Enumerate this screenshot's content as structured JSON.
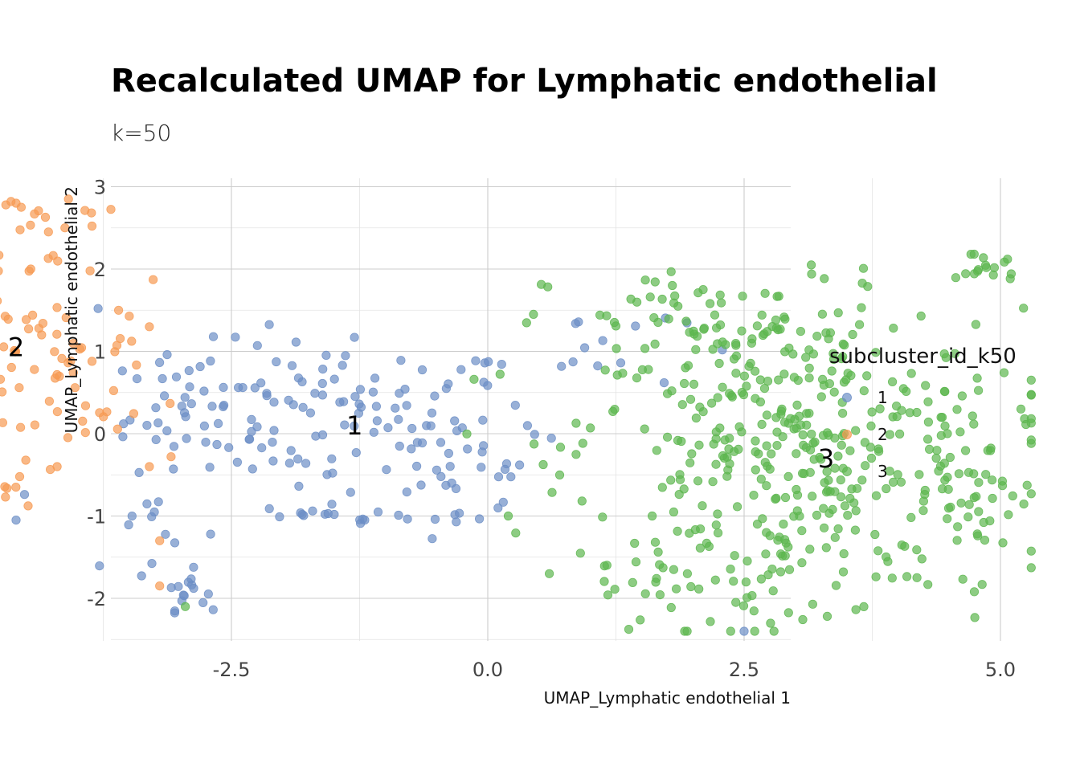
{
  "chart_data": {
    "type": "scatter",
    "title": "Recalculated UMAP for Lymphatic endothelial",
    "subtitle": "k=50",
    "xlabel": "UMAP_Lymphatic endothelial 1",
    "ylabel": "UMAP_Lymphatic endothelial 2",
    "xlim": [
      -7.0,
      6.0
    ],
    "ylim": [
      -2.5,
      3.1
    ],
    "x_ticks": [
      "-5.0",
      "-2.5",
      "0.0",
      "2.5",
      "5.0"
    ],
    "y_ticks": [
      "-2",
      "-1",
      "0",
      "1",
      "2",
      "3"
    ],
    "grid": true,
    "legend": {
      "title": "subcluster_id_k50",
      "position": "right",
      "entries": [
        "1",
        "2",
        "3"
      ]
    },
    "series": [
      {
        "name": "1",
        "color": "#6C8EC6",
        "centroid_label": {
          "text": "1",
          "x": -1.3,
          "y": 0.1
        },
        "clusters": [
          {
            "cx": -1.5,
            "cy": 0.2,
            "sx": 1.0,
            "sy": 0.45,
            "n": 120
          },
          {
            "cx": -0.6,
            "cy": -0.6,
            "sx": 0.7,
            "sy": 0.4,
            "n": 30
          },
          {
            "cx": -2.9,
            "cy": 0.5,
            "sx": 0.3,
            "sy": 0.45,
            "n": 20
          },
          {
            "cx": -3.3,
            "cy": -1.2,
            "sx": 0.35,
            "sy": 0.4,
            "n": 14
          },
          {
            "cx": -2.95,
            "cy": -1.9,
            "sx": 0.1,
            "sy": 0.12,
            "n": 14
          },
          {
            "cx": -1.5,
            "cy": -0.97,
            "sx": 0.35,
            "sy": 0.05,
            "n": 12
          },
          {
            "cx": 0.9,
            "cy": 1.1,
            "sx": 0.5,
            "sy": 0.3,
            "n": 14
          }
        ],
        "extra_points": [
          [
            -3.8,
            1.52
          ],
          [
            -1.3,
            1.17
          ],
          [
            -6.5,
            0.15
          ],
          [
            -5.2,
            -0.85
          ],
          [
            -4.6,
            -1.05
          ],
          [
            2.5,
            -2.4
          ],
          [
            -1.2,
            -1.05
          ]
        ]
      },
      {
        "name": "2",
        "color": "#F79A52",
        "centroid_label": {
          "text": "2",
          "x": -4.6,
          "y": 1.05
        },
        "clusters": [
          {
            "cx": -5.0,
            "cy": 1.0,
            "sx": 0.85,
            "sy": 0.5,
            "n": 150
          },
          {
            "cx": -6.5,
            "cy": 1.35,
            "sx": 0.2,
            "sy": 0.18,
            "n": 22
          },
          {
            "cx": -6.5,
            "cy": 0.4,
            "sx": 0.15,
            "sy": 0.2,
            "n": 8
          },
          {
            "cx": -5.0,
            "cy": -0.6,
            "sx": 0.35,
            "sy": 0.18,
            "n": 24
          },
          {
            "cx": -4.2,
            "cy": 2.3,
            "sx": 0.35,
            "sy": 0.3,
            "n": 16
          },
          {
            "cx": -3.7,
            "cy": 0.2,
            "sx": 0.25,
            "sy": 0.25,
            "n": 12
          }
        ],
        "extra_points": [
          [
            -4.65,
            2.82
          ],
          [
            -4.6,
            2.8
          ],
          [
            -4.55,
            2.75
          ],
          [
            -4.7,
            2.78
          ],
          [
            -3.2,
            -1.3
          ],
          [
            -3.2,
            -1.85
          ],
          [
            -3.6,
            1.5
          ],
          [
            -3.3,
            -0.4
          ],
          [
            -3.3,
            1.3
          ],
          [
            -4.2,
            -0.4
          ]
        ]
      },
      {
        "name": "3",
        "color": "#5DB64F",
        "centroid_label": {
          "text": "3",
          "x": 3.3,
          "y": -0.3
        },
        "clusters": [
          {
            "cx": 3.0,
            "cy": -0.2,
            "sx": 1.1,
            "sy": 0.85,
            "n": 380
          },
          {
            "cx": 2.4,
            "cy": 1.3,
            "sx": 0.9,
            "sy": 0.35,
            "n": 70
          },
          {
            "cx": 4.9,
            "cy": 2.05,
            "sx": 0.15,
            "sy": 0.12,
            "n": 16
          },
          {
            "cx": 2.3,
            "cy": -1.9,
            "sx": 0.6,
            "sy": 0.25,
            "n": 40
          },
          {
            "cx": 4.7,
            "cy": -0.8,
            "sx": 0.35,
            "sy": 0.6,
            "n": 30
          }
        ],
        "extra_points": [
          [
            -2.95,
            -2.1
          ],
          [
            0.6,
            -1.7
          ],
          [
            0.2,
            -1.0
          ],
          [
            5.2,
            0.3
          ],
          [
            1.8,
            1.8
          ],
          [
            2.1,
            1.75
          ]
        ]
      }
    ]
  }
}
